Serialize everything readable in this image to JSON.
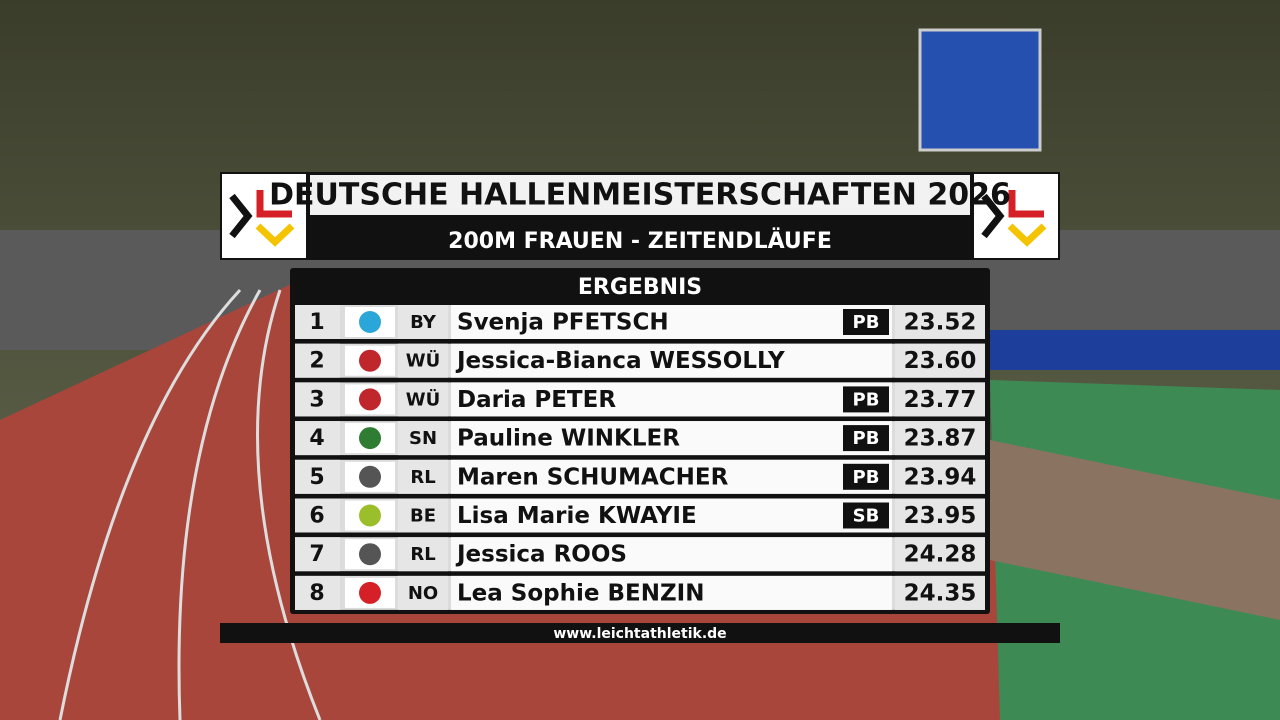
{
  "header": {
    "title": "DEUTSCHE HALLENMEISTERSCHAFTEN 2026",
    "subtitle": "200M FRAUEN - ZEITENDLÄUFE"
  },
  "table": {
    "heading": "ERGEBNIS",
    "rows": [
      {
        "rank": "1",
        "region": "BY",
        "name": "Svenja PFETSCH",
        "badge": "PB",
        "time": "23.52"
      },
      {
        "rank": "2",
        "region": "WÜ",
        "name": "Jessica-Bianca WESSOLLY",
        "time": "23.60"
      },
      {
        "rank": "3",
        "region": "WÜ",
        "name": "Daria PETER",
        "badge": "PB",
        "time": "23.77"
      },
      {
        "rank": "4",
        "region": "SN",
        "name": "Pauline WINKLER",
        "badge": "PB",
        "time": "23.87"
      },
      {
        "rank": "5",
        "region": "RL",
        "name": "Maren SCHUMACHER",
        "badge": "PB",
        "time": "23.94"
      },
      {
        "rank": "6",
        "region": "BE",
        "name": "Lisa Marie KWAYIE",
        "badge": "SB",
        "time": "23.95"
      },
      {
        "rank": "7",
        "region": "RL",
        "name": "Jessica ROOS",
        "time": "24.28"
      },
      {
        "rank": "8",
        "region": "NO",
        "name": "Lea Sophie BENZIN",
        "time": "24.35"
      }
    ]
  },
  "footer": {
    "url": "www.leichtathletik.de"
  }
}
